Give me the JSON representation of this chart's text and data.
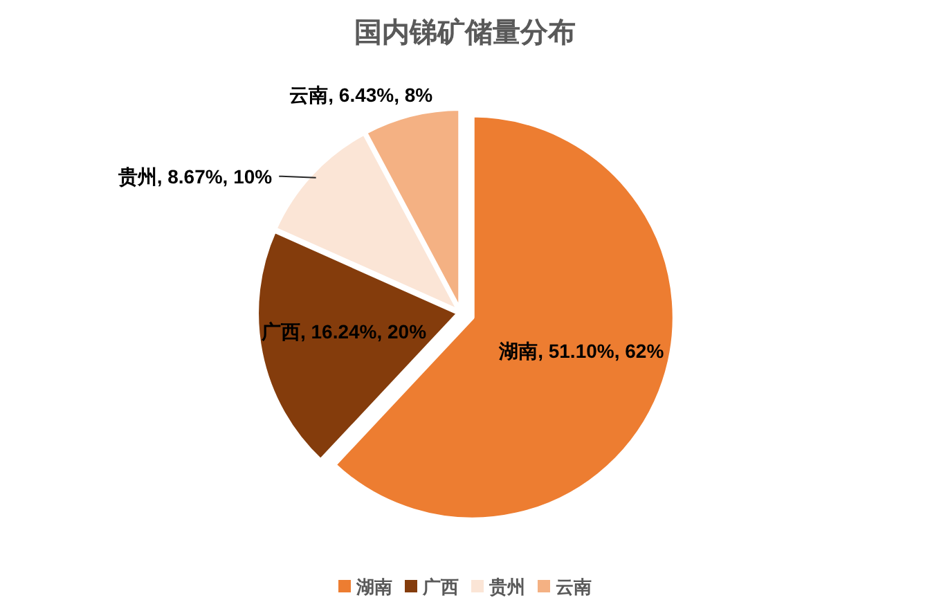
{
  "chart_data": {
    "type": "pie",
    "title": "国内锑矿储量分布",
    "categories": [
      "湖南",
      "广西",
      "贵州",
      "云南"
    ],
    "values": [
      51.1,
      16.24,
      8.67,
      6.43
    ],
    "colors": [
      "#ed7d31",
      "#843c0c",
      "#fbe5d6",
      "#f4b183"
    ],
    "value_labels": [
      "湖南, 51.10%, 62%",
      "广西, 16.24%, 20%",
      "贵州, 8.67%, 10%",
      "云南, 6.43%, 8%"
    ],
    "legend": "bottom"
  }
}
